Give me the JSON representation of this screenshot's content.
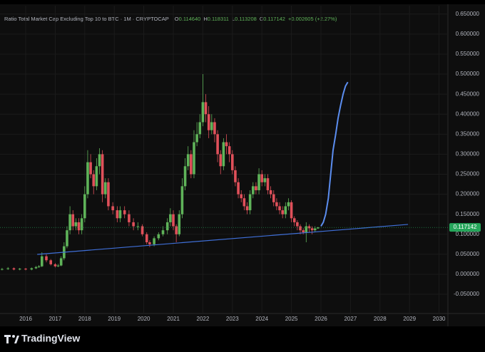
{
  "chart_data": {
    "type": "candlestick",
    "title": "Ratio Total Market Cap Excluding Top 10 to BTC · 1M · CRYPTOCAP",
    "ohlc_legend": [
      {
        "label": "O",
        "value": "0.114640"
      },
      {
        "label": "H",
        "value": "0.118311"
      },
      {
        "label": "L",
        "value": "0.113208"
      },
      {
        "label": "C",
        "value": "0.117142"
      }
    ],
    "change": "+0.002605 (+2.27%)",
    "up_color": "#5fb359",
    "down_color": "#e0505a",
    "x": [
      2015.2,
      2015.4,
      2015.6,
      2015.8,
      2016.0,
      2016.2,
      2016.35,
      2016.45,
      2016.55,
      2016.7,
      2016.85,
      2017.0,
      2017.1,
      2017.2,
      2017.3,
      2017.4,
      2017.5,
      2017.6,
      2017.7,
      2017.8,
      2017.9,
      2018.0,
      2018.1,
      2018.2,
      2018.3,
      2018.4,
      2018.5,
      2018.6,
      2018.7,
      2018.8,
      2018.95,
      2019.1,
      2019.2,
      2019.35,
      2019.5,
      2019.65,
      2019.8,
      2019.95,
      2020.1,
      2020.2,
      2020.35,
      2020.5,
      2020.65,
      2020.8,
      2020.9,
      2021.0,
      2021.1,
      2021.2,
      2021.3,
      2021.4,
      2021.5,
      2021.6,
      2021.7,
      2021.8,
      2021.9,
      2022.0,
      2022.1,
      2022.2,
      2022.3,
      2022.4,
      2022.5,
      2022.6,
      2022.7,
      2022.8,
      2022.9,
      2023.0,
      2023.1,
      2023.2,
      2023.3,
      2023.4,
      2023.5,
      2023.6,
      2023.7,
      2023.8,
      2023.9,
      2024.0,
      2024.1,
      2024.2,
      2024.3,
      2024.4,
      2024.5,
      2024.6,
      2024.7,
      2024.8,
      2024.9,
      2025.0,
      2025.1,
      2025.2,
      2025.3,
      2025.4,
      2025.5,
      2025.6,
      2025.7,
      2025.8,
      2025.9
    ],
    "open": [
      0.012,
      0.013,
      0.015,
      0.012,
      0.014,
      0.012,
      0.015,
      0.018,
      0.02,
      0.045,
      0.035,
      0.025,
      0.02,
      0.022,
      0.04,
      0.07,
      0.11,
      0.15,
      0.12,
      0.13,
      0.11,
      0.14,
      0.2,
      0.28,
      0.25,
      0.22,
      0.27,
      0.3,
      0.2,
      0.23,
      0.17,
      0.16,
      0.14,
      0.16,
      0.15,
      0.13,
      0.12,
      0.12,
      0.1,
      0.08,
      0.075,
      0.09,
      0.1,
      0.11,
      0.13,
      0.15,
      0.12,
      0.1,
      0.15,
      0.22,
      0.27,
      0.3,
      0.25,
      0.33,
      0.35,
      0.38,
      0.43,
      0.4,
      0.36,
      0.38,
      0.35,
      0.3,
      0.27,
      0.33,
      0.32,
      0.3,
      0.26,
      0.23,
      0.2,
      0.19,
      0.17,
      0.16,
      0.2,
      0.22,
      0.21,
      0.25,
      0.23,
      0.24,
      0.21,
      0.2,
      0.18,
      0.17,
      0.16,
      0.15,
      0.17,
      0.18,
      0.14,
      0.13,
      0.12,
      0.11,
      0.105,
      0.12,
      0.115,
      0.11,
      0.11464
    ],
    "high": [
      0.016,
      0.018,
      0.017,
      0.016,
      0.016,
      0.017,
      0.021,
      0.023,
      0.055,
      0.05,
      0.038,
      0.028,
      0.026,
      0.045,
      0.08,
      0.12,
      0.17,
      0.16,
      0.14,
      0.14,
      0.15,
      0.22,
      0.31,
      0.3,
      0.26,
      0.29,
      0.315,
      0.31,
      0.24,
      0.24,
      0.18,
      0.17,
      0.17,
      0.17,
      0.16,
      0.14,
      0.13,
      0.125,
      0.105,
      0.085,
      0.095,
      0.105,
      0.12,
      0.14,
      0.165,
      0.16,
      0.125,
      0.16,
      0.24,
      0.29,
      0.32,
      0.31,
      0.36,
      0.38,
      0.4,
      0.5,
      0.45,
      0.42,
      0.4,
      0.39,
      0.36,
      0.31,
      0.34,
      0.35,
      0.33,
      0.31,
      0.27,
      0.24,
      0.21,
      0.2,
      0.18,
      0.21,
      0.23,
      0.23,
      0.265,
      0.26,
      0.25,
      0.25,
      0.22,
      0.21,
      0.19,
      0.18,
      0.17,
      0.18,
      0.19,
      0.185,
      0.145,
      0.135,
      0.125,
      0.115,
      0.13,
      0.125,
      0.12,
      0.12,
      0.118311
    ],
    "low": [
      0.01,
      0.011,
      0.01,
      0.01,
      0.01,
      0.01,
      0.013,
      0.016,
      0.018,
      0.03,
      0.022,
      0.017,
      0.018,
      0.02,
      0.035,
      0.065,
      0.1,
      0.11,
      0.11,
      0.1,
      0.1,
      0.13,
      0.19,
      0.24,
      0.2,
      0.21,
      0.25,
      0.18,
      0.19,
      0.16,
      0.15,
      0.13,
      0.13,
      0.14,
      0.12,
      0.11,
      0.11,
      0.095,
      0.075,
      0.068,
      0.07,
      0.085,
      0.095,
      0.1,
      0.12,
      0.11,
      0.08,
      0.095,
      0.14,
      0.21,
      0.26,
      0.24,
      0.24,
      0.32,
      0.34,
      0.37,
      0.38,
      0.34,
      0.35,
      0.33,
      0.28,
      0.25,
      0.26,
      0.3,
      0.28,
      0.25,
      0.22,
      0.19,
      0.18,
      0.16,
      0.15,
      0.15,
      0.19,
      0.2,
      0.2,
      0.22,
      0.22,
      0.2,
      0.19,
      0.17,
      0.16,
      0.15,
      0.14,
      0.14,
      0.16,
      0.13,
      0.12,
      0.11,
      0.1,
      0.1,
      0.08,
      0.105,
      0.1,
      0.105,
      0.113208
    ],
    "close": [
      0.013,
      0.015,
      0.012,
      0.014,
      0.012,
      0.015,
      0.018,
      0.02,
      0.045,
      0.035,
      0.025,
      0.02,
      0.022,
      0.04,
      0.07,
      0.11,
      0.15,
      0.12,
      0.13,
      0.11,
      0.14,
      0.2,
      0.28,
      0.25,
      0.22,
      0.27,
      0.3,
      0.2,
      0.23,
      0.17,
      0.16,
      0.14,
      0.16,
      0.15,
      0.13,
      0.12,
      0.12,
      0.1,
      0.08,
      0.075,
      0.09,
      0.1,
      0.11,
      0.13,
      0.15,
      0.12,
      0.1,
      0.15,
      0.22,
      0.27,
      0.3,
      0.25,
      0.33,
      0.35,
      0.38,
      0.43,
      0.4,
      0.36,
      0.38,
      0.35,
      0.3,
      0.27,
      0.33,
      0.32,
      0.3,
      0.26,
      0.23,
      0.2,
      0.19,
      0.17,
      0.16,
      0.2,
      0.22,
      0.21,
      0.25,
      0.23,
      0.24,
      0.21,
      0.2,
      0.18,
      0.17,
      0.16,
      0.15,
      0.17,
      0.18,
      0.14,
      0.13,
      0.12,
      0.11,
      0.105,
      0.12,
      0.115,
      0.11,
      0.1146,
      0.117142
    ],
    "projection": {
      "color": "#5b8def",
      "x": [
        2026.0,
        2026.08,
        2026.16,
        2026.25,
        2026.33,
        2026.41,
        2026.5,
        2026.58,
        2026.66,
        2026.75,
        2026.83,
        2026.91
      ],
      "values": [
        0.12,
        0.13,
        0.15,
        0.19,
        0.25,
        0.31,
        0.35,
        0.39,
        0.42,
        0.45,
        0.47,
        0.48
      ]
    },
    "trendline": {
      "color": "#3f6fd8",
      "x": [
        2016.39,
        2028.95
      ],
      "y": [
        0.0498,
        0.1246
      ]
    },
    "last_price": {
      "value": 0.117142,
      "label": "0.117142",
      "color": "#26a65b"
    },
    "xlim": [
      2015.13,
      2030.3
    ],
    "ylim": [
      -0.098,
      0.671
    ],
    "xticks": [
      2016,
      2017,
      2018,
      2019,
      2020,
      2021,
      2022,
      2023,
      2024,
      2025,
      2026,
      2027,
      2028,
      2029,
      2030
    ],
    "yticks": [
      {
        "value": 0.65,
        "label": "0.650000"
      },
      {
        "value": 0.6,
        "label": "0.600000"
      },
      {
        "value": 0.55,
        "label": "0.550000"
      },
      {
        "value": 0.5,
        "label": "0.500000"
      },
      {
        "value": 0.45,
        "label": "0.450000"
      },
      {
        "value": 0.4,
        "label": "0.400000"
      },
      {
        "value": 0.35,
        "label": "0.350000"
      },
      {
        "value": 0.3,
        "label": "0.300000"
      },
      {
        "value": 0.25,
        "label": "0.250000"
      },
      {
        "value": 0.2,
        "label": "0.200000"
      },
      {
        "value": 0.15,
        "label": "0.150000"
      },
      {
        "value": 0.1,
        "label": "0.100000"
      },
      {
        "value": 0.05,
        "label": "0.050000"
      },
      {
        "value": 0,
        "label": "0.000000"
      },
      {
        "value": -0.05,
        "label": "-0.050000"
      }
    ]
  },
  "footer": {
    "brand": "TradingView"
  }
}
